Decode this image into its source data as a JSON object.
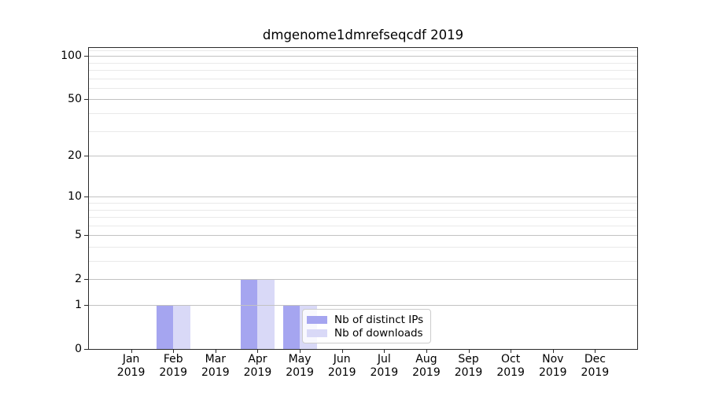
{
  "chart_data": {
    "type": "bar",
    "title": "dmgenome1dmrefseqcdf 2019",
    "x": {
      "months": [
        "Jan",
        "Feb",
        "Mar",
        "Apr",
        "May",
        "Jun",
        "Jul",
        "Aug",
        "Sep",
        "Oct",
        "Nov",
        "Dec"
      ],
      "year": "2019"
    },
    "series": [
      {
        "name": "Nb of distinct IPs",
        "color": "#a5a5f0",
        "values": [
          0,
          1,
          0,
          2,
          1,
          0,
          0,
          0,
          0,
          0,
          0,
          0
        ]
      },
      {
        "name": "Nb of downloads",
        "color": "#d9d9f7",
        "values": [
          0,
          1,
          0,
          2,
          1,
          0,
          0,
          0,
          0,
          0,
          0,
          0
        ]
      }
    ],
    "y": {
      "scale": "log1p",
      "major_ticks": [
        0,
        1,
        2,
        5,
        10,
        20,
        50,
        100
      ],
      "minor_ticks": [
        3,
        4,
        6,
        7,
        8,
        9,
        30,
        40,
        60,
        70,
        80,
        90,
        110
      ],
      "max": 113.6
    },
    "bar_width": 0.4,
    "legend": {
      "position": "lower-center"
    },
    "colors": {
      "grid_major": "#c2c2c2",
      "grid_minor": "#e9e9e9",
      "spine": "#2a2a2a",
      "text": "#000000",
      "background": "#ffffff",
      "legend_bg": "rgba(255,255,255,0.8)",
      "legend_border": "#cccccc"
    }
  }
}
